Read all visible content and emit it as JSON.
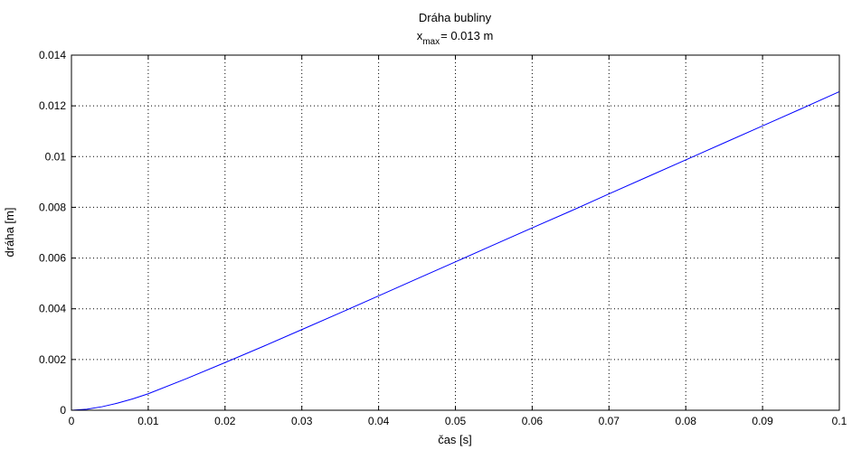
{
  "chart_data": {
    "type": "line",
    "title": "Dráha bubliny",
    "subtitle": {
      "prefix": "x",
      "subscript": "max",
      "suffix": "= 0.013 m"
    },
    "xlabel": "čas [s]",
    "ylabel": "dráha [m]",
    "xlim": [
      0,
      0.1
    ],
    "ylim": [
      0,
      0.014
    ],
    "xticks": [
      0,
      0.01,
      0.02,
      0.03,
      0.04,
      0.05,
      0.06,
      0.07,
      0.08,
      0.09,
      0.1
    ],
    "xtick_labels": [
      "0",
      "0.01",
      "0.02",
      "0.03",
      "0.04",
      "0.05",
      "0.06",
      "0.07",
      "0.08",
      "0.09",
      "0.1"
    ],
    "yticks": [
      0,
      0.002,
      0.004,
      0.006,
      0.008,
      0.01,
      0.012,
      0.014
    ],
    "ytick_labels": [
      "0",
      "0.002",
      "0.004",
      "0.006",
      "0.008",
      "0.01",
      "0.012",
      "0.014"
    ],
    "grid": true,
    "series": [
      {
        "color": "#0000ff",
        "x": [
          0,
          0.002,
          0.004,
          0.006,
          0.008,
          0.01,
          0.015,
          0.02,
          0.025,
          0.03,
          0.035,
          0.04,
          0.045,
          0.05,
          0.055,
          0.06,
          0.065,
          0.07,
          0.075,
          0.08,
          0.085,
          0.09,
          0.095,
          0.1
        ],
        "y": [
          0,
          4e-05,
          0.00014,
          0.00028,
          0.00045,
          0.00065,
          0.00125,
          0.00188,
          0.00252,
          0.00318,
          0.00384,
          0.00451,
          0.00518,
          0.00585,
          0.00652,
          0.00719,
          0.00785,
          0.00853,
          0.0092,
          0.00987,
          0.01054,
          0.01121,
          0.01188,
          0.01256
        ]
      }
    ]
  }
}
